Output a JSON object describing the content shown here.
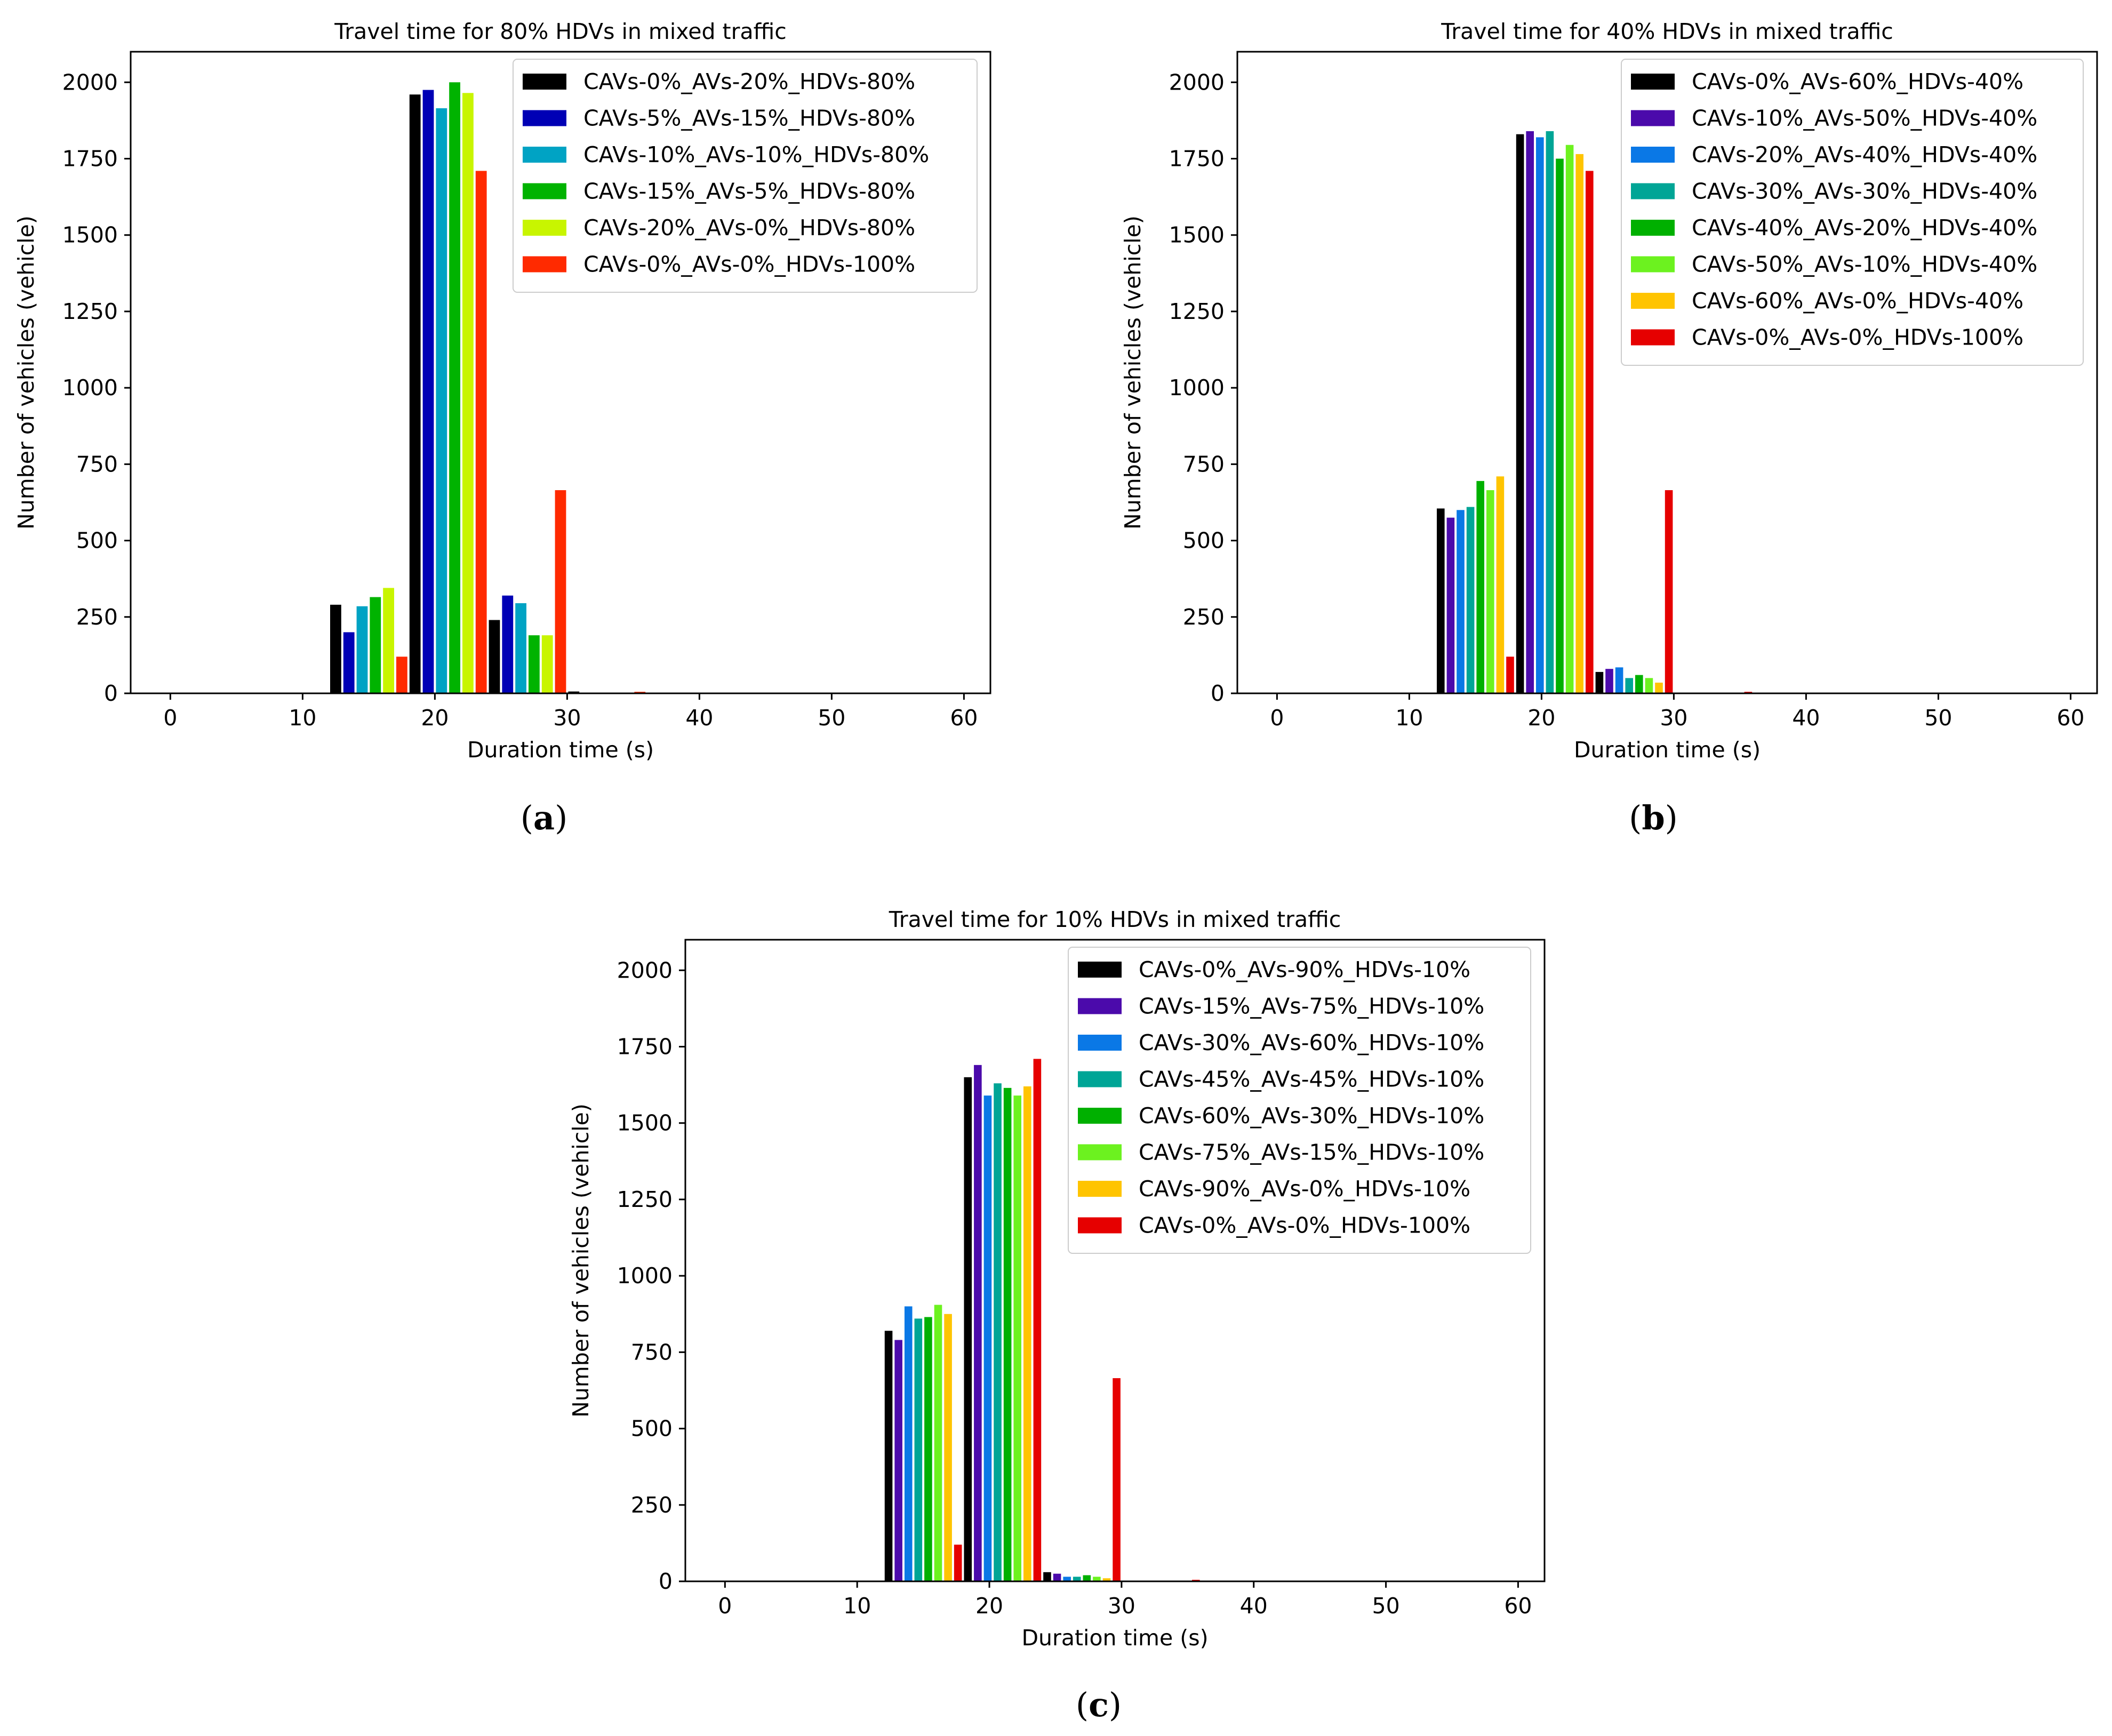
{
  "chart_data": [
    {
      "id": "a",
      "type": "bar",
      "title": "Travel time for 80% HDVs in mixed traffic",
      "xlabel": "Duration time (s)",
      "ylabel": "Number of vehicles (vehicle)",
      "caption": "a",
      "xlim": [
        -3,
        62
      ],
      "ylim": [
        0,
        2100
      ],
      "xticks": [
        0,
        10,
        20,
        30,
        40,
        50,
        60
      ],
      "yticks": [
        0,
        250,
        500,
        750,
        1000,
        1250,
        1500,
        1750,
        2000
      ],
      "legend_position": "top-right",
      "bin_centers": [
        15,
        21,
        27,
        33
      ],
      "bin_width": 6,
      "series": [
        {
          "name": "CAVs-0%_AVs-20%_HDVs-80%",
          "color": "#000000",
          "values": [
            290,
            1960,
            240,
            6
          ]
        },
        {
          "name": "CAVs-5%_AVs-15%_HDVs-80%",
          "color": "#0000b5",
          "values": [
            200,
            1975,
            320,
            0
          ]
        },
        {
          "name": "CAVs-10%_AVs-10%_HDVs-80%",
          "color": "#00a3c4",
          "values": [
            285,
            1915,
            295,
            0
          ]
        },
        {
          "name": "CAVs-15%_AVs-5%_HDVs-80%",
          "color": "#00b300",
          "values": [
            315,
            2000,
            190,
            0
          ]
        },
        {
          "name": "CAVs-20%_AVs-0%_HDVs-80%",
          "color": "#c8f500",
          "values": [
            345,
            1965,
            190,
            0
          ]
        },
        {
          "name": "CAVs-0%_AVs-0%_HDVs-100%",
          "color": "#ff2a00",
          "values": [
            120,
            1710,
            665,
            5
          ]
        }
      ]
    },
    {
      "id": "b",
      "type": "bar",
      "title": "Travel time for 40% HDVs in mixed traffic",
      "xlabel": "Duration time (s)",
      "ylabel": "Number of vehicles (vehicle)",
      "caption": "b",
      "xlim": [
        -3,
        62
      ],
      "ylim": [
        0,
        2100
      ],
      "xticks": [
        0,
        10,
        20,
        30,
        40,
        50,
        60
      ],
      "yticks": [
        0,
        250,
        500,
        750,
        1000,
        1250,
        1500,
        1750,
        2000
      ],
      "legend_position": "top-right",
      "bin_centers": [
        15,
        21,
        27,
        33
      ],
      "bin_width": 6,
      "series": [
        {
          "name": "CAVs-0%_AVs-60%_HDVs-40%",
          "color": "#000000",
          "values": [
            605,
            1830,
            70,
            0
          ]
        },
        {
          "name": "CAVs-10%_AVs-50%_HDVs-40%",
          "color": "#4b0aab",
          "values": [
            575,
            1840,
            80,
            0
          ]
        },
        {
          "name": "CAVs-20%_AVs-40%_HDVs-40%",
          "color": "#0a78e6",
          "values": [
            600,
            1820,
            85,
            0
          ]
        },
        {
          "name": "CAVs-30%_AVs-30%_HDVs-40%",
          "color": "#00a596",
          "values": [
            610,
            1840,
            50,
            0
          ]
        },
        {
          "name": "CAVs-40%_AVs-20%_HDVs-40%",
          "color": "#00b000",
          "values": [
            695,
            1750,
            60,
            0
          ]
        },
        {
          "name": "CAVs-50%_AVs-10%_HDVs-40%",
          "color": "#6cf21f",
          "values": [
            665,
            1795,
            50,
            0
          ]
        },
        {
          "name": "CAVs-60%_AVs-0%_HDVs-40%",
          "color": "#ffc400",
          "values": [
            710,
            1765,
            35,
            0
          ]
        },
        {
          "name": "CAVs-0%_AVs-0%_HDVs-100%",
          "color": "#e60000",
          "values": [
            120,
            1710,
            665,
            5
          ]
        }
      ]
    },
    {
      "id": "c",
      "type": "bar",
      "title": "Travel time for 10% HDVs in mixed traffic",
      "xlabel": "Duration time (s)",
      "ylabel": "Number of vehicles (vehicle)",
      "caption": "c",
      "xlim": [
        -3,
        62
      ],
      "ylim": [
        0,
        2100
      ],
      "xticks": [
        0,
        10,
        20,
        30,
        40,
        50,
        60
      ],
      "yticks": [
        0,
        250,
        500,
        750,
        1000,
        1250,
        1500,
        1750,
        2000
      ],
      "legend_position": "top-right",
      "bin_centers": [
        15,
        21,
        27,
        33
      ],
      "bin_width": 6,
      "series": [
        {
          "name": "CAVs-0%_AVs-90%_HDVs-10%",
          "color": "#000000",
          "values": [
            820,
            1650,
            30,
            0
          ]
        },
        {
          "name": "CAVs-15%_AVs-75%_HDVs-10%",
          "color": "#4b0aab",
          "values": [
            790,
            1690,
            25,
            0
          ]
        },
        {
          "name": "CAVs-30%_AVs-60%_HDVs-10%",
          "color": "#0a78e6",
          "values": [
            900,
            1590,
            15,
            0
          ]
        },
        {
          "name": "CAVs-45%_AVs-45%_HDVs-10%",
          "color": "#00a596",
          "values": [
            860,
            1630,
            15,
            0
          ]
        },
        {
          "name": "CAVs-60%_AVs-30%_HDVs-10%",
          "color": "#00b000",
          "values": [
            865,
            1615,
            20,
            0
          ]
        },
        {
          "name": "CAVs-75%_AVs-15%_HDVs-10%",
          "color": "#6cf21f",
          "values": [
            905,
            1590,
            15,
            0
          ]
        },
        {
          "name": "CAVs-90%_AVs-0%_HDVs-10%",
          "color": "#ffc400",
          "values": [
            875,
            1620,
            10,
            0
          ]
        },
        {
          "name": "CAVs-0%_AVs-0%_HDVs-100%",
          "color": "#e60000",
          "values": [
            120,
            1710,
            665,
            5
          ]
        }
      ]
    }
  ]
}
